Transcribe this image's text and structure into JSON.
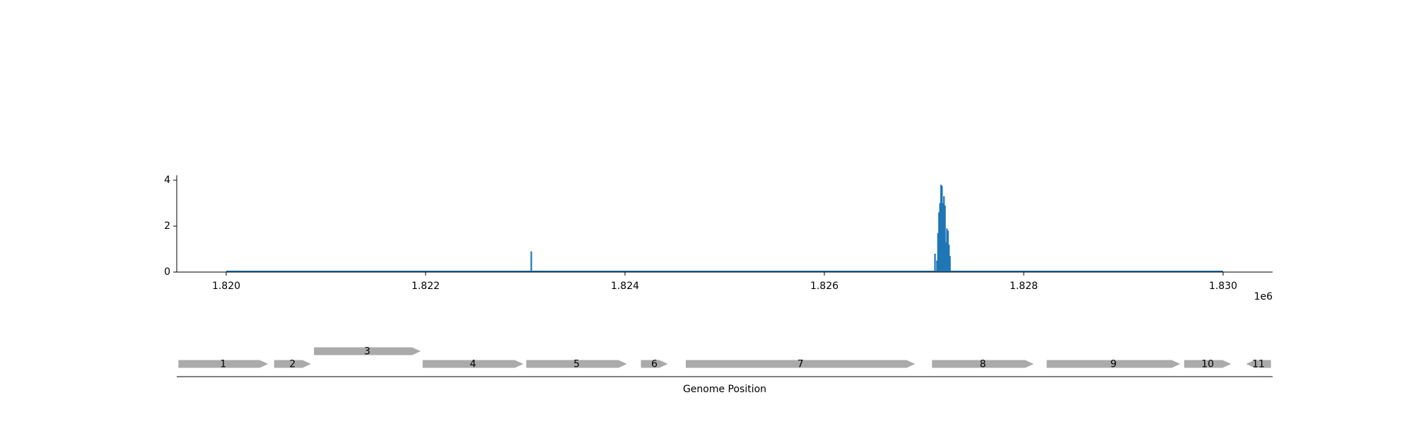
{
  "chart_data": [
    {
      "type": "line",
      "x_label": "",
      "y_label": "",
      "x_offset_label": "1e6",
      "xlim": [
        1819500,
        1830500
      ],
      "ylim": [
        0,
        4.25
      ],
      "x_ticks": [
        1820000,
        1822000,
        1824000,
        1826000,
        1828000,
        1830000
      ],
      "x_tick_labels": [
        "1.820",
        "1.822",
        "1.824",
        "1.826",
        "1.828",
        "1.830"
      ],
      "y_ticks": [
        0,
        2,
        4
      ],
      "y_tick_labels": [
        "0",
        "2",
        "4"
      ],
      "grid": false,
      "color": "#1f77b4",
      "baseline_range": [
        1820000,
        1830000
      ],
      "x": [
        1823060,
        1827110,
        1827130,
        1827140,
        1827150,
        1827160,
        1827170,
        1827180,
        1827190,
        1827200,
        1827210,
        1827220,
        1827230,
        1827240,
        1827250,
        1827260
      ],
      "y": [
        0.9,
        0.8,
        0.5,
        1.7,
        2.6,
        3.0,
        3.8,
        3.75,
        3.0,
        3.3,
        2.9,
        1.3,
        1.9,
        1.8,
        1.2,
        0.7
      ]
    },
    {
      "type": "gene_track",
      "xlabel": "Genome Position",
      "color": "#aaaaaa",
      "genes": [
        {
          "label": "1",
          "start": 1819520,
          "end": 1820420,
          "strand": "+",
          "row": 0
        },
        {
          "label": "2",
          "start": 1820480,
          "end": 1820850,
          "strand": "+",
          "row": 0
        },
        {
          "label": "3",
          "start": 1820880,
          "end": 1821950,
          "strand": "+",
          "row": 1
        },
        {
          "label": "4",
          "start": 1821970,
          "end": 1822980,
          "strand": "+",
          "row": 0
        },
        {
          "label": "5",
          "start": 1823010,
          "end": 1824020,
          "strand": "+",
          "row": 0
        },
        {
          "label": "6",
          "start": 1824160,
          "end": 1824430,
          "strand": "+",
          "row": 0
        },
        {
          "label": "7",
          "start": 1824610,
          "end": 1826910,
          "strand": "+",
          "row": 0
        },
        {
          "label": "8",
          "start": 1827080,
          "end": 1828100,
          "strand": "+",
          "row": 0
        },
        {
          "label": "9",
          "start": 1828230,
          "end": 1829570,
          "strand": "+",
          "row": 0
        },
        {
          "label": "10",
          "start": 1829610,
          "end": 1830080,
          "strand": "+",
          "row": 0
        },
        {
          "label": "11",
          "start": 1830230,
          "end": 1830480,
          "strand": "-",
          "row": 0
        }
      ]
    }
  ]
}
